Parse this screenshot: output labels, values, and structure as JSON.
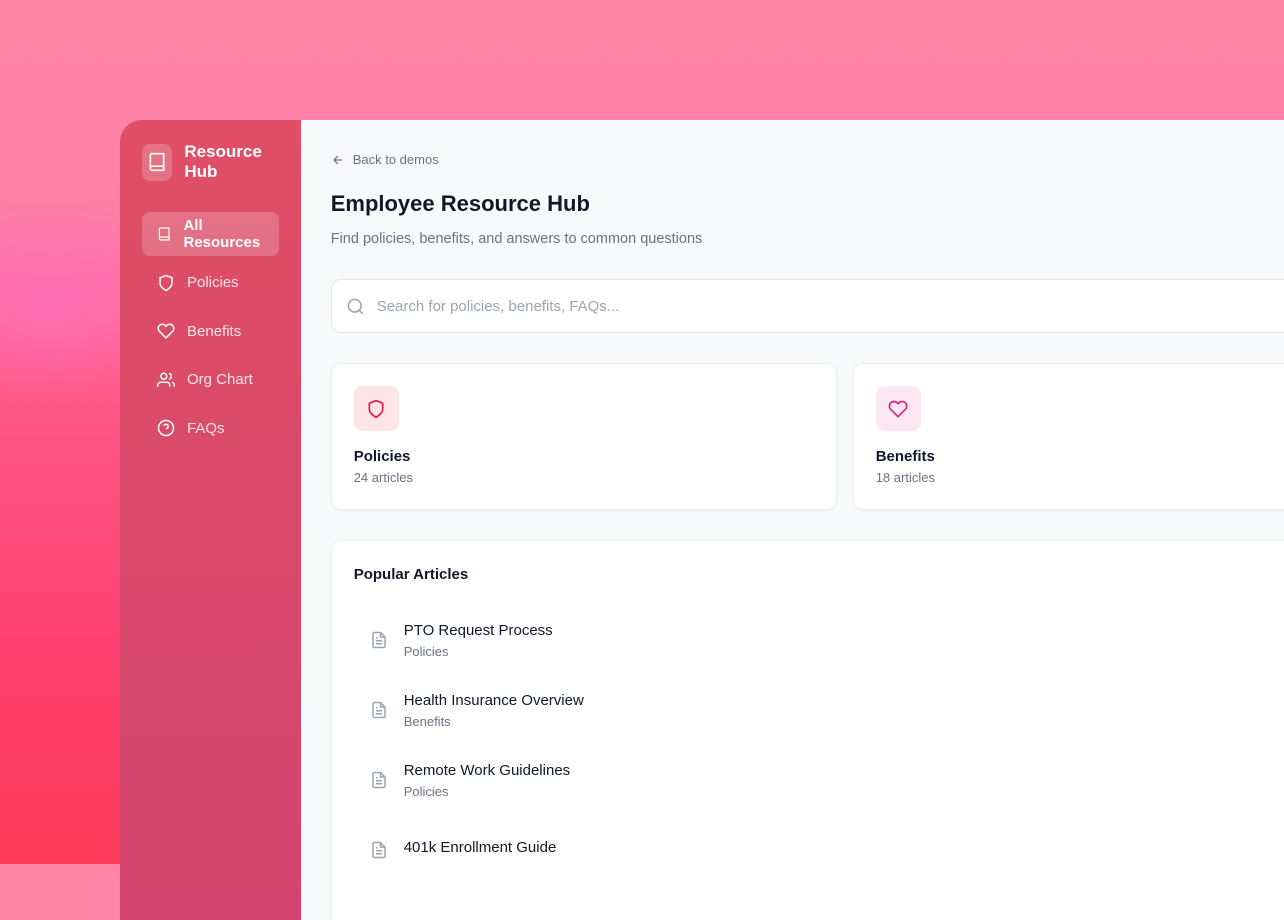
{
  "brand": {
    "name": "Resource Hub"
  },
  "sidebar": {
    "items": [
      {
        "label": "All Resources",
        "icon": "book-icon",
        "active": true
      },
      {
        "label": "Policies",
        "icon": "shield-icon"
      },
      {
        "label": "Benefits",
        "icon": "heart-icon"
      },
      {
        "label": "Org Chart",
        "icon": "users-icon"
      },
      {
        "label": "FAQs",
        "icon": "help-circle-icon"
      }
    ]
  },
  "main": {
    "back": "Back to demos",
    "title": "Employee Resource Hub",
    "subtitle": "Find policies, benefits, and answers to common questions",
    "search": {
      "placeholder": "Search for policies, benefits, FAQs...",
      "value": ""
    },
    "categories": [
      {
        "title": "Policies",
        "count": "24 articles",
        "icon": "shield-icon",
        "color": "#e11d48",
        "bg": "#fde4e7"
      },
      {
        "title": "Benefits",
        "count": "18 articles",
        "icon": "heart-icon",
        "color": "#db2777",
        "bg": "#fce7f3"
      }
    ],
    "popular": {
      "title": "Popular Articles",
      "articles": [
        {
          "title": "PTO Request Process",
          "category": "Policies"
        },
        {
          "title": "Health Insurance Overview",
          "category": "Benefits"
        },
        {
          "title": "Remote Work Guidelines",
          "category": "Policies"
        },
        {
          "title": "401k Enrollment Guide",
          "category": ""
        }
      ]
    }
  }
}
